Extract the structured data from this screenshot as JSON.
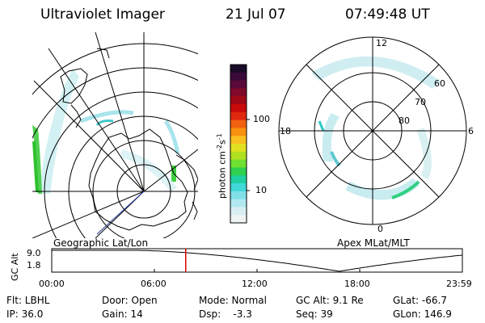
{
  "header": {
    "title": "Ultraviolet Imager",
    "date": "21 Jul 07",
    "time": "07:49:48 UT"
  },
  "left_panel": {
    "label": "Geographic Lat/Lon"
  },
  "right_panel": {
    "label": "Apex MLat/MLT",
    "lat_labels": [
      "60",
      "70",
      "80"
    ],
    "mlt_labels": {
      "top": "12",
      "right": "6",
      "bottom": "0",
      "left": "18"
    }
  },
  "colorbar": {
    "unit": "photon cm",
    "unit_exp1": "-2",
    "unit_mid": "s",
    "unit_exp2": "-1",
    "ticks": [
      "100",
      "10"
    ],
    "colors": [
      "#1a0a2a",
      "#3a0a3a",
      "#5a0a3a",
      "#800828",
      "#a00818",
      "#c80a0a",
      "#e02810",
      "#f06010",
      "#f89010",
      "#f8c020",
      "#e0e020",
      "#b0e020",
      "#70e030",
      "#30d050",
      "#20d0a0",
      "#40d8d8",
      "#80e0e8",
      "#b0e8f0",
      "#d8eef2",
      "#eef4f4"
    ]
  },
  "timeline": {
    "ylabel": "GC Alt",
    "y_ticks": [
      "9.0",
      "1.8"
    ],
    "x_ticks": [
      "00:00",
      "06:00",
      "12:00",
      "18:00",
      "23:59"
    ],
    "marker_time": "07:49:48",
    "curve_color": "#000000",
    "marker_color": "#dd0000"
  },
  "info": {
    "row1": [
      "Flt: LBHL",
      "Door: Open",
      "Mode: Normal",
      "GC Alt: 9.1 Re",
      "GLat: -66.7"
    ],
    "row2": [
      "IP: 36.0",
      "Gain: 14",
      "Dsp:    -3.3",
      "Seq: 39",
      "GLon: 146.9"
    ]
  }
}
